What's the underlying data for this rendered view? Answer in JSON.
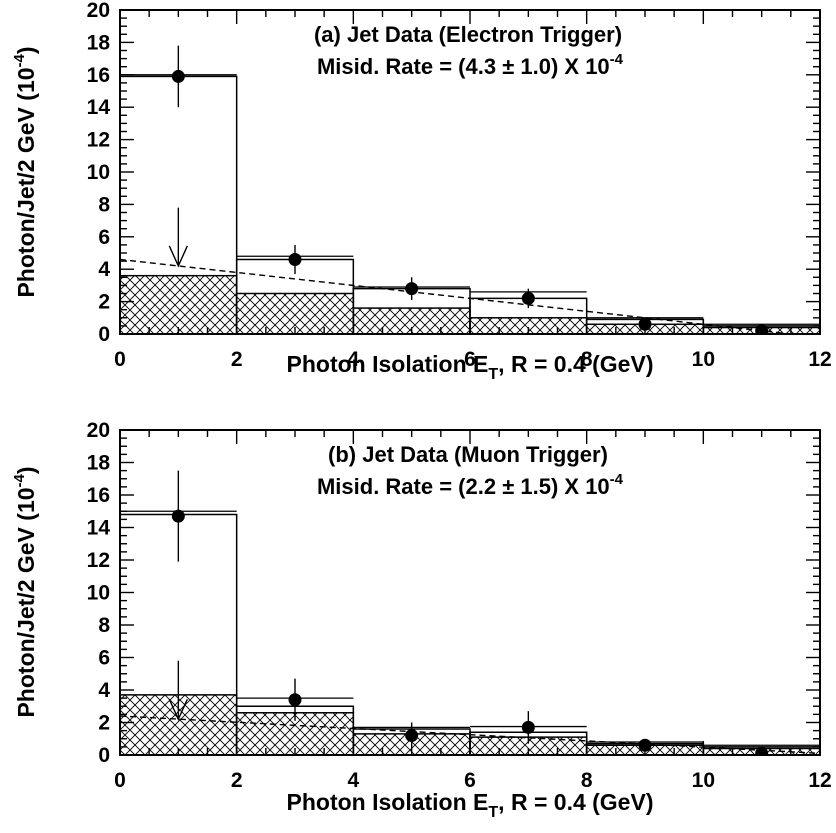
{
  "colors": {
    "ink": "#000000",
    "background": "#ffffff"
  },
  "chart_data": [
    {
      "type": "bar",
      "panel": "a",
      "title": "(a) Jet Data (Electron Trigger)",
      "subtitle_prefix": "Misid. Rate = (4.3 ± 1.0) X 10",
      "subtitle_exp": "-4",
      "xlabel_prefix": "Photon Isolation E",
      "xlabel_sub": "T",
      "xlabel_suffix": ", R = 0.4  (GeV)",
      "ylabel_prefix": "Photon/Jet/2 GeV (10",
      "ylabel_exp": "-4",
      "ylabel_suffix": ")",
      "xlim": [
        0,
        12
      ],
      "ylim": [
        0,
        20
      ],
      "x_ticks": [
        "0",
        "2",
        "4",
        "6",
        "8",
        "10",
        "12"
      ],
      "y_ticks": [
        "0",
        "2",
        "4",
        "6",
        "8",
        "10",
        "12",
        "14",
        "16",
        "18",
        "20"
      ],
      "bins": [
        [
          0,
          2
        ],
        [
          2,
          4
        ],
        [
          4,
          6
        ],
        [
          6,
          8
        ],
        [
          8,
          10
        ],
        [
          10,
          12
        ]
      ],
      "series": [
        {
          "style": "points",
          "x": [
            1,
            3,
            5,
            7,
            9,
            11
          ],
          "values": [
            15.9,
            4.6,
            2.8,
            2.2,
            0.6,
            0.2
          ],
          "errors": [
            1.9,
            0.9,
            0.7,
            0.6,
            0.2,
            0.1
          ]
        },
        {
          "style": "open-histogram",
          "values": [
            15.9,
            4.6,
            2.8,
            2.2,
            0.9,
            0.5
          ],
          "band": [
            0.1,
            0.2,
            0.1,
            0.4,
            0.1,
            0.1
          ]
        },
        {
          "style": "hatched-histogram",
          "values": [
            3.6,
            2.5,
            1.6,
            1.0,
            0.6,
            0.4
          ]
        },
        {
          "style": "dashed-line",
          "x": [
            0,
            12
          ],
          "values": [
            4.6,
            -0.2
          ]
        }
      ],
      "arrow": {
        "x": 1,
        "from": 7.8,
        "to": 4.2
      }
    },
    {
      "type": "bar",
      "panel": "b",
      "title": "(b) Jet Data (Muon Trigger)",
      "subtitle_prefix": "Misid. Rate = (2.2 ± 1.5) X 10",
      "subtitle_exp": "-4",
      "xlabel_prefix": "Photon Isolation E",
      "xlabel_sub": "T",
      "xlabel_suffix": ", R = 0.4  (GeV)",
      "ylabel_prefix": "Photon/Jet/2 GeV (10",
      "ylabel_exp": "-4",
      "ylabel_suffix": ")",
      "xlim": [
        0,
        12
      ],
      "ylim": [
        0,
        20
      ],
      "x_ticks": [
        "0",
        "2",
        "4",
        "6",
        "8",
        "10",
        "12"
      ],
      "y_ticks": [
        "0",
        "2",
        "4",
        "6",
        "8",
        "10",
        "12",
        "14",
        "16",
        "18",
        "20"
      ],
      "bins": [
        [
          0,
          2
        ],
        [
          2,
          4
        ],
        [
          4,
          6
        ],
        [
          6,
          8
        ],
        [
          8,
          10
        ],
        [
          10,
          12
        ]
      ],
      "series": [
        {
          "style": "points",
          "x": [
            1,
            3,
            5,
            7,
            9,
            11
          ],
          "values": [
            14.7,
            3.4,
            1.2,
            1.7,
            0.6,
            0.1
          ],
          "errors": [
            2.8,
            1.3,
            0.8,
            1.0,
            0.3,
            0.2
          ]
        },
        {
          "style": "open-histogram",
          "values": [
            14.8,
            3.0,
            1.6,
            1.4,
            0.7,
            0.5
          ],
          "band": [
            0.2,
            0.5,
            0.1,
            0.35,
            0.1,
            0.1
          ]
        },
        {
          "style": "hatched-histogram",
          "values": [
            3.7,
            2.6,
            1.3,
            1.1,
            0.6,
            0.4
          ]
        },
        {
          "style": "dashed-line",
          "x": [
            0,
            12
          ],
          "values": [
            2.4,
            0.1
          ]
        }
      ],
      "arrow": {
        "x": 1,
        "from": 5.8,
        "to": 2.2
      }
    }
  ]
}
